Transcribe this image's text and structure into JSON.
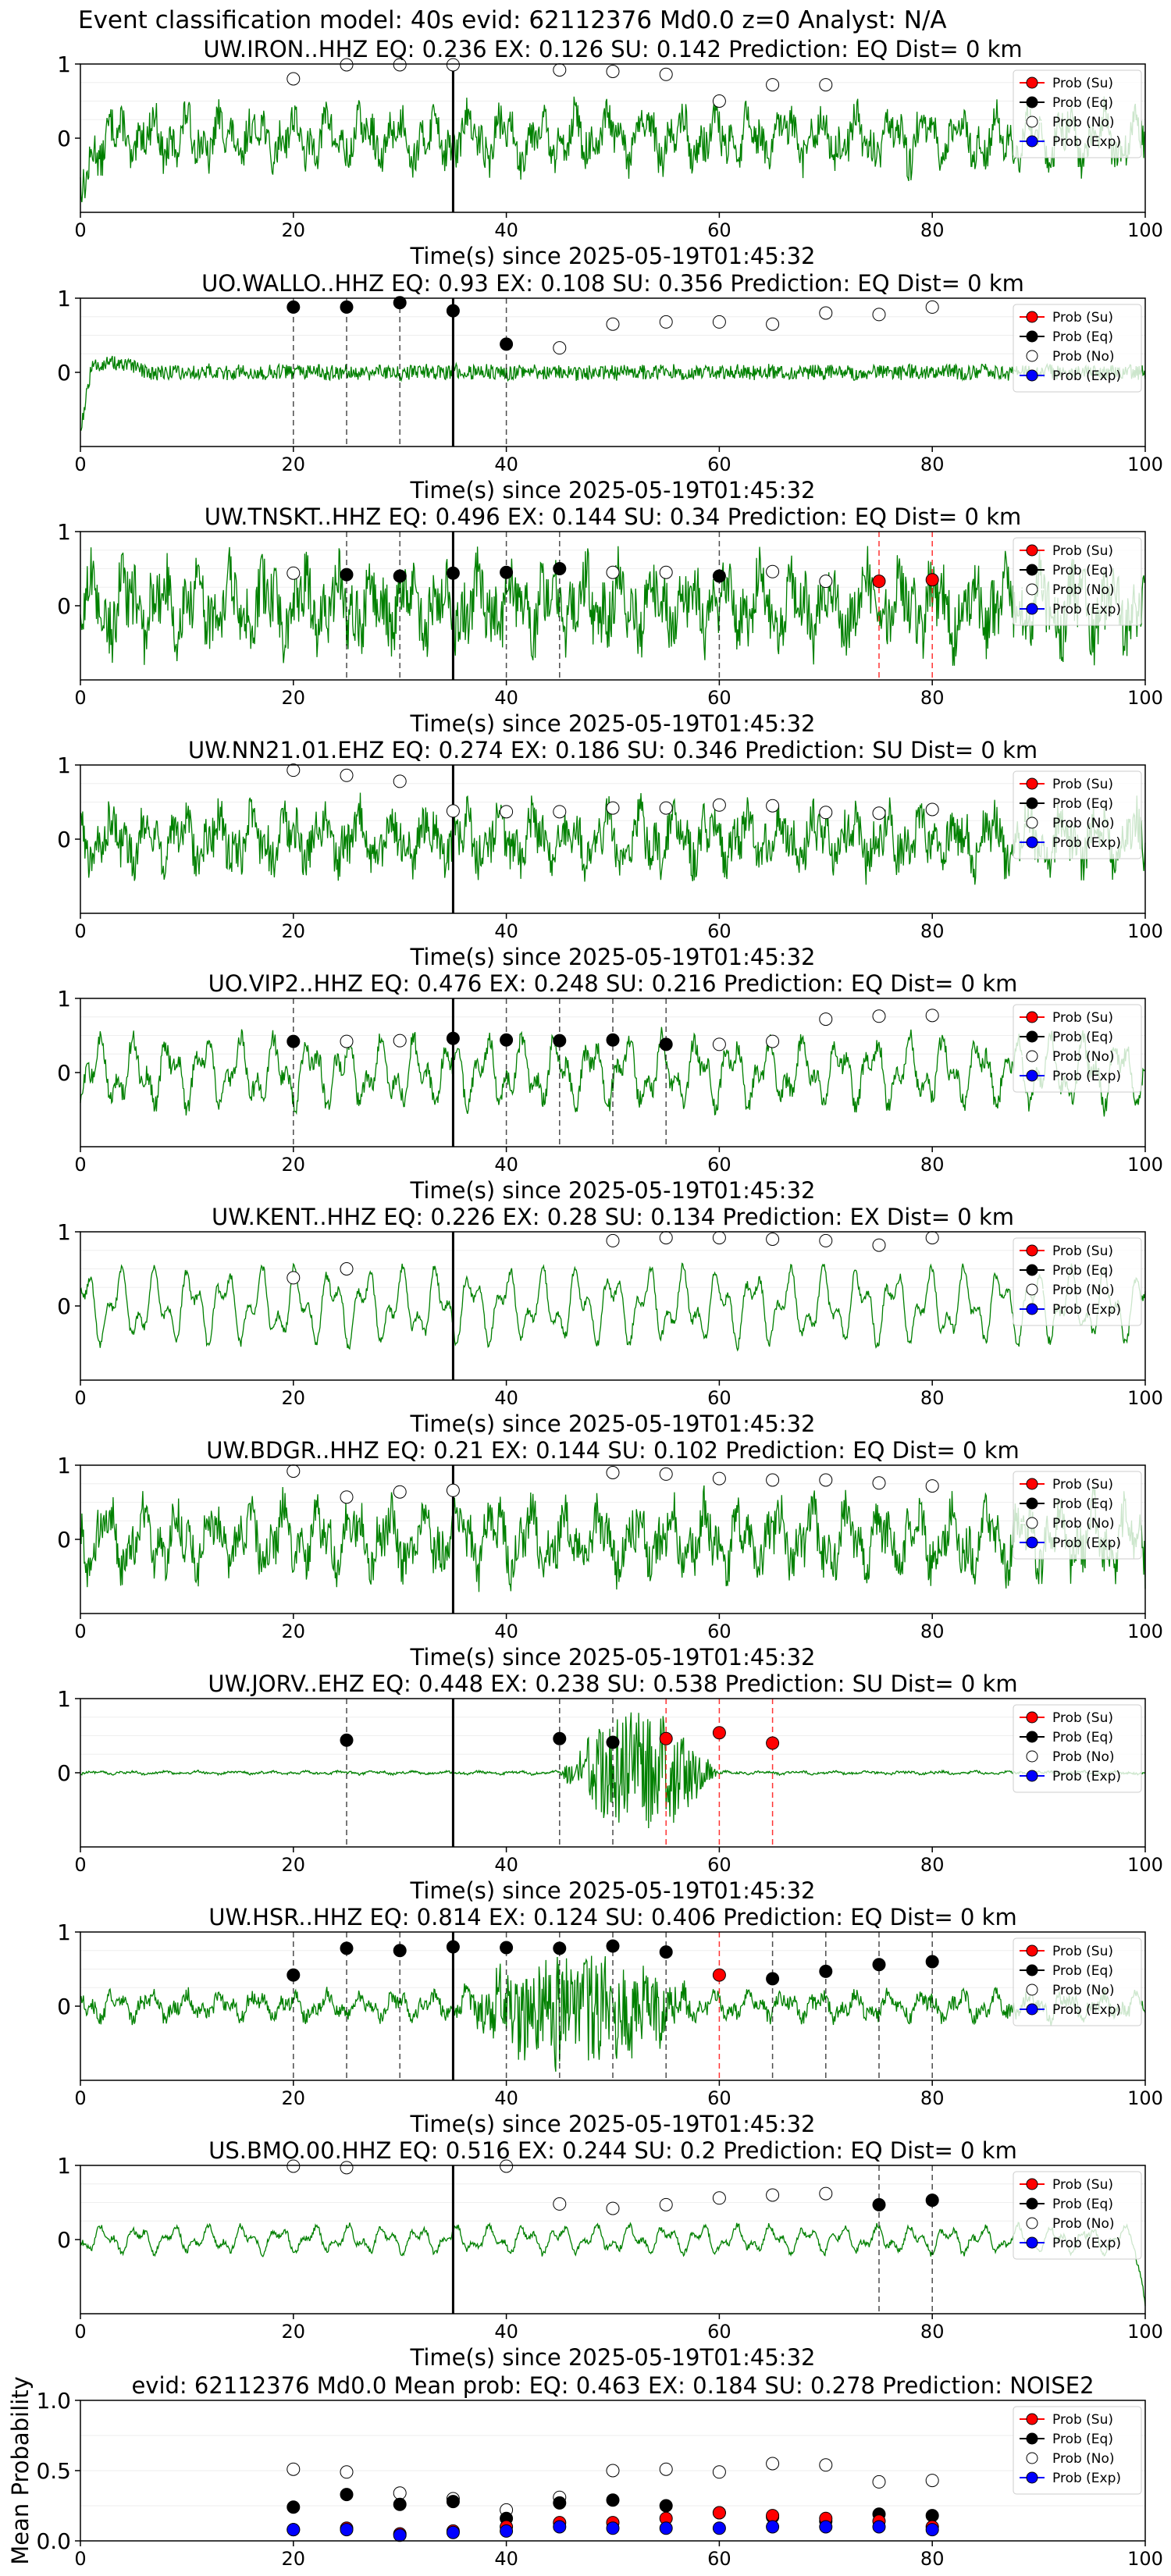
{
  "figure": {
    "title": "Event classification model: 40s evid: 62112376 Md0.0 z=0 Analyst: N/A",
    "origin_time_marker_s": 35
  },
  "colors": {
    "waveform": "#008000",
    "su": "#ff0000",
    "eq": "#000000",
    "no": "#ffffff",
    "exp": "#0000ff",
    "su_pick_line": "#ff0000",
    "eq_pick_line": "#000000"
  },
  "chart_data": [
    {
      "type": "line",
      "title": "UW.IRON..HHZ   EQ: 0.236  EX: 0.126  SU: 0.142   Prediction: EQ    Dist= 0 km",
      "xlabel": "Time(s) since 2025-05-19T01:45:32",
      "xlim": [
        0,
        100
      ],
      "ylim": [
        -1,
        1
      ],
      "xticks": [
        "0",
        "20",
        "40",
        "60",
        "80",
        "100"
      ],
      "yticks": [
        "0",
        "1"
      ],
      "waveform": {
        "amp": 0.35,
        "noise": 0.5,
        "start": "drop"
      },
      "legend": [
        "Prob (Su)",
        "Prob (Eq)",
        "Prob (No)",
        "Prob (Exp)"
      ],
      "series": [
        {
          "name": "Prob (No)",
          "x": [
            20,
            25,
            30,
            35,
            45,
            50,
            55,
            60,
            65,
            70
          ],
          "y": [
            0.8,
            0.99,
            0.99,
            0.99,
            0.92,
            0.9,
            0.86,
            0.5,
            0.72,
            0.72
          ]
        }
      ],
      "eq_picks": [],
      "su_picks": []
    },
    {
      "type": "line",
      "title": "UO.WALLO..HHZ   EQ: 0.93  EX: 0.108  SU: 0.356   Prediction: EQ    Dist= 0 km",
      "xlabel": "Time(s) since 2025-05-19T01:45:32",
      "xlim": [
        0,
        100
      ],
      "ylim": [
        -1,
        1
      ],
      "xticks": [
        "0",
        "20",
        "40",
        "60",
        "80",
        "100"
      ],
      "yticks": [
        "0",
        "1"
      ],
      "waveform": {
        "amp": 0.02,
        "noise": 0.2,
        "start": "bump"
      },
      "legend": [
        "Prob (Su)",
        "Prob (Eq)",
        "Prob (No)",
        "Prob (Exp)"
      ],
      "series": [
        {
          "name": "Prob (Eq)",
          "x": [
            20,
            25,
            30,
            35,
            40
          ],
          "y": [
            0.88,
            0.88,
            0.94,
            0.83,
            0.38
          ]
        },
        {
          "name": "Prob (No)",
          "x": [
            45,
            50,
            55,
            60,
            65,
            70,
            75,
            80
          ],
          "y": [
            0.33,
            0.65,
            0.68,
            0.68,
            0.65,
            0.8,
            0.78,
            0.88
          ]
        }
      ],
      "eq_picks": [
        20,
        25,
        30,
        40
      ],
      "su_picks": []
    },
    {
      "type": "line",
      "title": "UW.TNSKT..HHZ   EQ: 0.496  EX: 0.144  SU: 0.34   Prediction: EQ    Dist= 0 km",
      "xlabel": "Time(s) since 2025-05-19T01:45:32",
      "xlim": [
        0,
        100
      ],
      "ylim": [
        -1,
        1
      ],
      "xticks": [
        "0",
        "20",
        "40",
        "60",
        "80",
        "100"
      ],
      "yticks": [
        "0",
        "1"
      ],
      "waveform": {
        "amp": 0.45,
        "noise": 0.8,
        "start": "none"
      },
      "legend": [
        "Prob (Su)",
        "Prob (Eq)",
        "Prob (No)",
        "Prob (Exp)"
      ],
      "series": [
        {
          "name": "Prob (Su)",
          "x": [
            75,
            80
          ],
          "y": [
            0.33,
            0.35
          ]
        },
        {
          "name": "Prob (Eq)",
          "x": [
            25,
            30,
            35,
            40,
            45,
            60
          ],
          "y": [
            0.42,
            0.4,
            0.44,
            0.45,
            0.5,
            0.4
          ]
        },
        {
          "name": "Prob (No)",
          "x": [
            20,
            50,
            55,
            65,
            70
          ],
          "y": [
            0.44,
            0.45,
            0.45,
            0.46,
            0.33
          ]
        }
      ],
      "eq_picks": [
        25,
        30,
        40,
        45,
        60
      ],
      "su_picks": [
        75,
        80
      ]
    },
    {
      "type": "line",
      "title": "UW.NN21.01.EHZ   EQ: 0.274  EX: 0.186  SU: 0.346   Prediction: SU    Dist= 0 km",
      "xlabel": "Time(s) since 2025-05-19T01:45:32",
      "xlim": [
        0,
        100
      ],
      "ylim": [
        -1,
        1
      ],
      "xticks": [
        "0",
        "20",
        "40",
        "60",
        "80",
        "100"
      ],
      "yticks": [
        "0",
        "1"
      ],
      "waveform": {
        "amp": 0.35,
        "noise": 0.6,
        "start": "none"
      },
      "legend": [
        "Prob (Su)",
        "Prob (Eq)",
        "Prob (No)",
        "Prob (Exp)"
      ],
      "series": [
        {
          "name": "Prob (No)",
          "x": [
            20,
            25,
            30,
            35,
            40,
            45,
            50,
            55,
            60,
            65,
            70,
            75,
            80
          ],
          "y": [
            0.93,
            0.86,
            0.78,
            0.38,
            0.37,
            0.37,
            0.42,
            0.42,
            0.46,
            0.45,
            0.36,
            0.35,
            0.4
          ]
        }
      ],
      "eq_picks": [],
      "su_picks": []
    },
    {
      "type": "line",
      "title": "UO.VIP2..HHZ   EQ: 0.476  EX: 0.248  SU: 0.216   Prediction: EQ    Dist= 0 km",
      "xlabel": "Time(s) since 2025-05-19T01:45:32",
      "xlim": [
        0,
        100
      ],
      "ylim": [
        -1,
        1
      ],
      "xticks": [
        "0",
        "20",
        "40",
        "60",
        "80",
        "100"
      ],
      "yticks": [
        "0",
        "1"
      ],
      "waveform": {
        "amp": 0.5,
        "noise": 0.25,
        "start": "none"
      },
      "legend": [
        "Prob (Su)",
        "Prob (Eq)",
        "Prob (No)",
        "Prob (Exp)"
      ],
      "series": [
        {
          "name": "Prob (Eq)",
          "x": [
            20,
            35,
            40,
            45,
            50,
            55
          ],
          "y": [
            0.42,
            0.46,
            0.44,
            0.43,
            0.44,
            0.38
          ]
        },
        {
          "name": "Prob (No)",
          "x": [
            25,
            30,
            60,
            65,
            70,
            75,
            80
          ],
          "y": [
            0.42,
            0.43,
            0.38,
            0.42,
            0.72,
            0.76,
            0.77
          ]
        }
      ],
      "eq_picks": [
        20,
        40,
        45,
        50,
        55
      ],
      "su_picks": []
    },
    {
      "type": "line",
      "title": "UW.KENT..HHZ   EQ: 0.226  EX: 0.28  SU: 0.134   Prediction: EX    Dist= 0 km",
      "xlabel": "Time(s) since 2025-05-19T01:45:32",
      "xlim": [
        0,
        100
      ],
      "ylim": [
        -1,
        1
      ],
      "xticks": [
        "0",
        "20",
        "40",
        "60",
        "80",
        "100"
      ],
      "yticks": [
        "0",
        "1"
      ],
      "waveform": {
        "amp": 0.55,
        "noise": 0.12,
        "start": "none"
      },
      "legend": [
        "Prob (Su)",
        "Prob (Eq)",
        "Prob (No)",
        "Prob (Exp)"
      ],
      "series": [
        {
          "name": "Prob (No)",
          "x": [
            20,
            25,
            50,
            55,
            60,
            65,
            70,
            75,
            80
          ],
          "y": [
            0.38,
            0.5,
            0.88,
            0.92,
            0.92,
            0.9,
            0.88,
            0.82,
            0.92
          ]
        }
      ],
      "eq_picks": [],
      "su_picks": []
    },
    {
      "type": "line",
      "title": "UW.BDGR..HHZ   EQ: 0.21  EX: 0.144  SU: 0.102   Prediction: EQ    Dist= 0 km",
      "xlabel": "Time(s) since 2025-05-19T01:45:32",
      "xlim": [
        0,
        100
      ],
      "ylim": [
        -1,
        1
      ],
      "xticks": [
        "0",
        "20",
        "40",
        "60",
        "80",
        "100"
      ],
      "yticks": [
        "0",
        "1"
      ],
      "waveform": {
        "amp": 0.45,
        "noise": 0.6,
        "start": "none"
      },
      "legend": [
        "Prob (Su)",
        "Prob (Eq)",
        "Prob (No)",
        "Prob (Exp)"
      ],
      "series": [
        {
          "name": "Prob (No)",
          "x": [
            20,
            25,
            30,
            35,
            50,
            55,
            60,
            65,
            70,
            75,
            80
          ],
          "y": [
            0.92,
            0.57,
            0.64,
            0.66,
            0.9,
            0.88,
            0.82,
            0.8,
            0.8,
            0.76,
            0.72
          ]
        }
      ],
      "eq_picks": [],
      "su_picks": []
    },
    {
      "type": "line",
      "title": "UW.JORV..EHZ   EQ: 0.448  EX: 0.238  SU: 0.538   Prediction: SU    Dist= 0 km",
      "xlabel": "Time(s) since 2025-05-19T01:45:32",
      "xlim": [
        0,
        100
      ],
      "ylim": [
        -1,
        1
      ],
      "xticks": [
        "0",
        "20",
        "40",
        "60",
        "80",
        "100"
      ],
      "yticks": [
        "0",
        "1"
      ],
      "waveform": {
        "amp": 0.02,
        "noise": 0.03,
        "start": "none",
        "burst": [
          45,
          60,
          0.85
        ]
      },
      "legend": [
        "Prob (Su)",
        "Prob (Eq)",
        "Prob (No)",
        "Prob (Exp)"
      ],
      "series": [
        {
          "name": "Prob (Su)",
          "x": [
            55,
            60,
            65
          ],
          "y": [
            0.46,
            0.54,
            0.4
          ]
        },
        {
          "name": "Prob (Eq)",
          "x": [
            25,
            45,
            50
          ],
          "y": [
            0.44,
            0.46,
            0.41
          ]
        }
      ],
      "eq_picks": [
        25,
        45,
        50
      ],
      "su_picks": [
        55,
        60,
        65
      ]
    },
    {
      "type": "line",
      "title": "UW.HSR..HHZ   EQ: 0.814  EX: 0.124  SU: 0.406   Prediction: EQ    Dist= 0 km",
      "xlabel": "Time(s) since 2025-05-19T01:45:32",
      "xlim": [
        0,
        100
      ],
      "ylim": [
        -1,
        1
      ],
      "xticks": [
        "0",
        "20",
        "40",
        "60",
        "80",
        "100"
      ],
      "yticks": [
        "0",
        "1"
      ],
      "waveform": {
        "amp": 0.18,
        "noise": 0.2,
        "start": "none",
        "burst": [
          35,
          58,
          0.75
        ]
      },
      "legend": [
        "Prob (Su)",
        "Prob (Eq)",
        "Prob (No)",
        "Prob (Exp)"
      ],
      "series": [
        {
          "name": "Prob (Su)",
          "x": [
            60
          ],
          "y": [
            0.42
          ]
        },
        {
          "name": "Prob (Eq)",
          "x": [
            20,
            25,
            30,
            35,
            40,
            45,
            50,
            55,
            65,
            70,
            75,
            80
          ],
          "y": [
            0.42,
            0.78,
            0.75,
            0.8,
            0.79,
            0.78,
            0.81,
            0.73,
            0.37,
            0.47,
            0.56,
            0.6
          ]
        }
      ],
      "eq_picks": [
        20,
        25,
        30,
        40,
        45,
        50,
        55,
        65,
        70,
        75,
        80
      ],
      "su_picks": [
        60
      ]
    },
    {
      "type": "line",
      "title": "US.BMO.00.HHZ   EQ: 0.516  EX: 0.244  SU: 0.2   Prediction: EQ    Dist= 0 km",
      "xlabel": "Time(s) since 2025-05-19T01:45:32",
      "xlim": [
        0,
        100
      ],
      "ylim": [
        -1,
        1
      ],
      "xticks": [
        "0",
        "20",
        "40",
        "60",
        "80",
        "100"
      ],
      "yticks": [
        "0",
        "1"
      ],
      "waveform": {
        "amp": 0.2,
        "noise": 0.08,
        "start": "none",
        "end": "drop"
      },
      "legend": [
        "Prob (Su)",
        "Prob (Eq)",
        "Prob (No)",
        "Prob (Exp)"
      ],
      "series": [
        {
          "name": "Prob (Eq)",
          "x": [
            75,
            80
          ],
          "y": [
            0.47,
            0.53
          ]
        },
        {
          "name": "Prob (No)",
          "x": [
            20,
            25,
            40,
            45,
            50,
            55,
            60,
            65,
            70
          ],
          "y": [
            0.99,
            0.97,
            0.99,
            0.48,
            0.42,
            0.47,
            0.56,
            0.6,
            0.62
          ]
        }
      ],
      "eq_picks": [
        75,
        80
      ],
      "su_picks": []
    },
    {
      "type": "scatter",
      "title": "evid: 62112376  Md0.0   Mean prob:   EQ: 0.463  EX: 0.184  SU: 0.278   Prediction: NOISE2",
      "xlabel": "",
      "ylabel": "Mean Probability",
      "xlim": [
        0,
        100
      ],
      "ylim": [
        0,
        1
      ],
      "xticks": [
        "0",
        "20",
        "40",
        "60",
        "80",
        "100"
      ],
      "yticks": [
        "0.0",
        "0.5",
        "1.0"
      ],
      "legend": [
        "Prob (Su)",
        "Prob (Eq)",
        "Prob (No)",
        "Prob (Exp)"
      ],
      "series": [
        {
          "name": "Prob (No)",
          "x": [
            20,
            25,
            30,
            35,
            40,
            45,
            50,
            55,
            60,
            65,
            70,
            75,
            80
          ],
          "y": [
            0.51,
            0.49,
            0.34,
            0.3,
            0.22,
            0.31,
            0.5,
            0.51,
            0.49,
            0.55,
            0.54,
            0.42,
            0.43
          ]
        },
        {
          "name": "Prob (Eq)",
          "x": [
            20,
            25,
            30,
            35,
            40,
            45,
            50,
            55,
            60,
            65,
            70,
            75,
            80
          ],
          "y": [
            0.24,
            0.33,
            0.26,
            0.28,
            0.16,
            0.27,
            0.29,
            0.25,
            0.2,
            0.17,
            0.14,
            0.19,
            0.18
          ]
        },
        {
          "name": "Prob (Su)",
          "x": [
            20,
            25,
            30,
            35,
            40,
            45,
            50,
            55,
            60,
            65,
            70,
            75,
            80
          ],
          "y": [
            0.08,
            0.09,
            0.05,
            0.07,
            0.1,
            0.13,
            0.13,
            0.16,
            0.2,
            0.18,
            0.16,
            0.14,
            0.1
          ]
        },
        {
          "name": "Prob (Exp)",
          "x": [
            20,
            25,
            30,
            35,
            40,
            45,
            50,
            55,
            60,
            65,
            70,
            75,
            80
          ],
          "y": [
            0.08,
            0.08,
            0.04,
            0.06,
            0.07,
            0.1,
            0.09,
            0.09,
            0.09,
            0.1,
            0.1,
            0.1,
            0.08
          ]
        }
      ],
      "eq_picks": [],
      "su_picks": []
    }
  ]
}
